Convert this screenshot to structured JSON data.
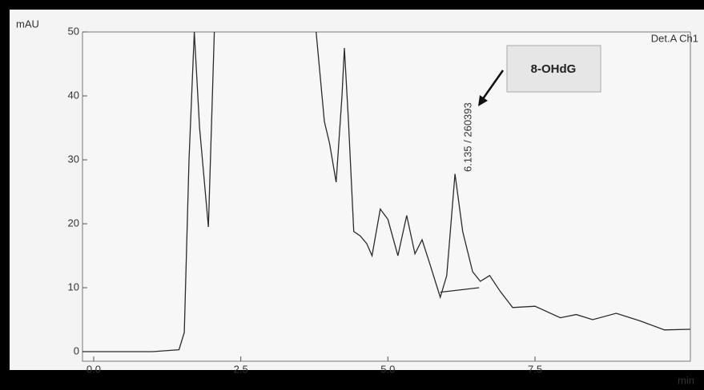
{
  "chart_data": {
    "type": "line",
    "y_label": "mAU",
    "x_label": "min",
    "detector_label": "Det.A Ch1",
    "peak_label": "6.135 / 260393",
    "callout": "8-OHdG",
    "xlim": [
      -0.19,
      10.14
    ],
    "ylim": [
      -1.5,
      50
    ],
    "xticks": [
      {
        "value": 0,
        "label": "0.0"
      },
      2.5,
      {
        "value": 5,
        "label": "5.0"
      },
      7.5
    ],
    "yticks": [
      0,
      10,
      20,
      30,
      40,
      50
    ],
    "series": [
      {
        "color": "#2a2a2a",
        "x": [
          -0.19,
          1.0,
          1.45,
          1.54,
          1.62,
          1.71,
          1.8,
          1.95,
          2.05,
          2.9,
          3.78,
          3.92,
          4.01,
          4.12,
          4.22,
          4.26,
          4.33,
          4.42,
          4.53,
          4.64,
          4.73,
          4.87,
          5.0,
          5.17,
          5.32,
          5.46,
          5.58,
          5.71,
          5.89,
          6.0,
          6.14,
          6.27,
          6.44,
          6.57,
          6.73,
          6.91,
          7.12,
          7.5,
          7.93,
          8.2,
          8.48,
          8.88,
          9.29,
          9.7,
          10.14
        ],
        "values": [
          0,
          0,
          0.3,
          3,
          30,
          50,
          35,
          19.5,
          50,
          null,
          50,
          36,
          32.5,
          26.5,
          40,
          47.5,
          36,
          18.8,
          18.1,
          16.9,
          15,
          22.3,
          20.7,
          15,
          21.3,
          15.3,
          17.5,
          13.8,
          8.5,
          11.9,
          27.8,
          18.8,
          12.5,
          11,
          11.9,
          9.4,
          6.9,
          7.1,
          5.3,
          5.8,
          5,
          6,
          4.8,
          3.4,
          3.5
        ]
      },
      {
        "color": "#2a2a2a",
        "x": [
          5.89,
          6.55
        ],
        "values": [
          9.3,
          10
        ]
      }
    ]
  }
}
